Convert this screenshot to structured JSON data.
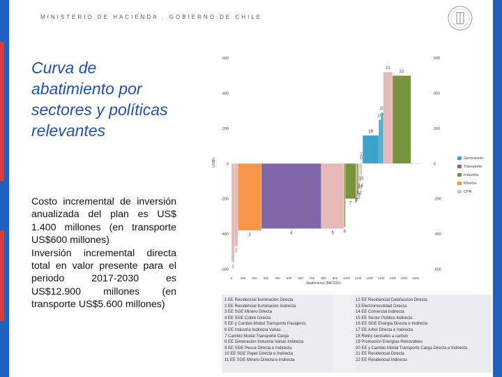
{
  "header": {
    "ministry": "MINISTERIO DE HACIENDA . GOBIERNO DE CHILE"
  },
  "slide": {
    "title": "Curva de abatimiento por sectores y políticas relevantes",
    "paragraph1": "Costo incremental de inversión anualizada del plan es US$ 1.400 millones (en transporte US$600 millones)",
    "paragraph2": "Inversión incremental directa total en valor presente para el periodo 2017-2030 es US$12.900 millones (en transporte US$5.600 millones)"
  },
  "chart_data": {
    "type": "bar",
    "ylabel": "US$/t",
    "xlabel": "Abatimiento (MtCO2e)",
    "ylim": [
      -610,
      620
    ],
    "y_ticks_left": [
      "600",
      "400",
      "200",
      "0",
      "-200",
      "-400",
      "-600"
    ],
    "y_ticks_right": [
      "600",
      "400",
      "200",
      "0",
      "-200",
      "-400",
      "-600"
    ],
    "x_ticks": [
      "0",
      "100",
      "200",
      "300",
      "400",
      "500",
      "600",
      "700",
      "800",
      "900",
      "1000",
      "1100",
      "1200",
      "1300",
      "1400",
      "1500",
      "1600"
    ],
    "legend": [
      {
        "name": "Generación",
        "color": "#3ea3c9"
      },
      {
        "name": "Transporte",
        "color": "#8067a8"
      },
      {
        "name": "Industria",
        "color": "#77933c"
      },
      {
        "name": "Minería",
        "color": "#f79646"
      },
      {
        "name": "CPR",
        "color": "#e6b9b8"
      }
    ],
    "bars": [
      {
        "label": "1",
        "x0": 0,
        "x1": 25,
        "value": -560,
        "sector": "CPR"
      },
      {
        "label": "2",
        "x0": 25,
        "x1": 55,
        "value": -470,
        "sector": "CPR"
      },
      {
        "label": "3",
        "x0": 55,
        "x1": 260,
        "value": -380,
        "sector": "Minería"
      },
      {
        "label": "4",
        "x0": 260,
        "x1": 780,
        "value": -370,
        "sector": "Transporte"
      },
      {
        "label": "5",
        "x0": 780,
        "x1": 980,
        "value": -370,
        "sector": "CPR"
      },
      {
        "label": "6",
        "x0": 980,
        "x1": 990,
        "value": -360,
        "sector": "Industria"
      },
      {
        "label": "7",
        "x0": 990,
        "x1": 1080,
        "value": -200,
        "sector": "Industria"
      },
      {
        "label": "8",
        "x0": 1080,
        "x1": 1085,
        "value": -190,
        "sector": "Industria"
      },
      {
        "label": "9",
        "x0": 1085,
        "x1": 1090,
        "value": -180,
        "sector": "Industria"
      },
      {
        "label": "10",
        "x0": 1090,
        "x1": 1100,
        "value": -170,
        "sector": "Industria"
      },
      {
        "label": "11",
        "x0": 1100,
        "x1": 1110,
        "value": -150,
        "sector": "CPR"
      },
      {
        "label": "12",
        "x0": 1110,
        "x1": 1115,
        "value": -140,
        "sector": "CPR"
      },
      {
        "label": "13",
        "x0": 1115,
        "x1": 1120,
        "value": -110,
        "sector": "CPR"
      },
      {
        "label": "14",
        "x0": 1120,
        "x1": 1125,
        "value": -100,
        "sector": "CPR"
      },
      {
        "label": "15",
        "x0": 1125,
        "x1": 1130,
        "value": -60,
        "sector": "Generación"
      },
      {
        "label": "16",
        "x0": 1130,
        "x1": 1135,
        "value": 10,
        "sector": "CPR"
      },
      {
        "label": "17",
        "x0": 1135,
        "x1": 1140,
        "value": 30,
        "sector": "CPR"
      },
      {
        "label": "18",
        "x0": 1140,
        "x1": 1280,
        "value": 160,
        "sector": "Generación"
      },
      {
        "label": "19",
        "x0": 1280,
        "x1": 1300,
        "value": 250,
        "sector": "Generación"
      },
      {
        "label": "20",
        "x0": 1300,
        "x1": 1320,
        "value": 290,
        "sector": "Generación"
      },
      {
        "label": "21",
        "x0": 1320,
        "x1": 1400,
        "value": 520,
        "sector": "CPR"
      },
      {
        "label": "22",
        "x0": 1400,
        "x1": 1560,
        "value": 500,
        "sector": "Industria"
      }
    ]
  },
  "legend_table": {
    "left": [
      "1 EE Residencial Iluminacion Directa",
      "2 EE Residencial Iluminacion Indirecta",
      "3 EE SGE Minero Directa",
      "4 EE SGE Cobre Directa",
      "5 EE y Cambio Modal Transporte Pasajeros",
      "6 EE Industria Indirecta Varias",
      "7 Cambio Modal Transporte Carga",
      "8 EE Generación Industria Varias Indirecta",
      "9 EE SGE Pesca Directa e Indirecta",
      "10 EE SGE Papel Directa e Indirecta",
      "11 EE SGE Minero Directa e Indirecta"
    ],
    "right": [
      "12 EE Residencial Calefaccion Directa",
      "13 Electromovilidad Directa",
      "14 EE Comercial Indirecta",
      "15 EE Sector Publico Indirecta",
      "16 EE SGE Energia Directa e Indirecta",
      "17 EE Arbol Directa e Indirecta",
      "18 Retiro centrales a carbon",
      "19 Promoción Energías Renovables",
      "20 EE y Cambio Modal Transporte Carga Directa e Indirecta",
      "21 EE Residencial Directa",
      "22 EE Residencial Indirecta"
    ]
  }
}
